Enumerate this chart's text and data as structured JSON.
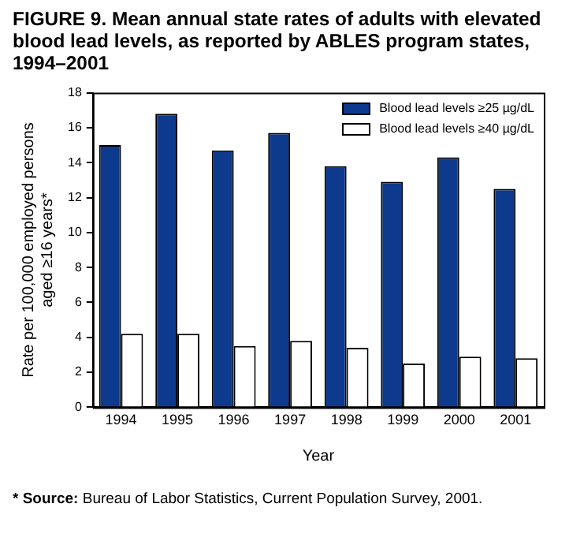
{
  "chart_data": {
    "type": "bar",
    "title": "FIGURE 9. Mean annual state rates of adults with elevated blood lead levels, as reported by ABLES program states, 1994–2001",
    "categories": [
      "1994",
      "1995",
      "1996",
      "1997",
      "1998",
      "1999",
      "2000",
      "2001"
    ],
    "series": [
      {
        "name": "Blood lead levels ≥25 µg/dL",
        "color": "#0d3a8c",
        "values": [
          15.0,
          16.8,
          14.7,
          15.7,
          13.8,
          12.9,
          14.3,
          12.5
        ]
      },
      {
        "name": "Blood lead levels ≥40 µg/dL",
        "color": "#ffffff",
        "values": [
          4.2,
          4.2,
          3.5,
          3.8,
          3.4,
          2.5,
          2.9,
          2.8
        ]
      }
    ],
    "xlabel": "Year",
    "ylabel": "Rate per 100,000 employed persons aged ≥16 years*",
    "ylim": [
      0,
      18
    ],
    "yticks": [
      0,
      2,
      4,
      6,
      8,
      10,
      12,
      14,
      16,
      18
    ],
    "grid": false,
    "legend": "top right",
    "annotations": [
      "* Source: Bureau of Labor Statistics, Current Population Survey, 2001."
    ]
  }
}
